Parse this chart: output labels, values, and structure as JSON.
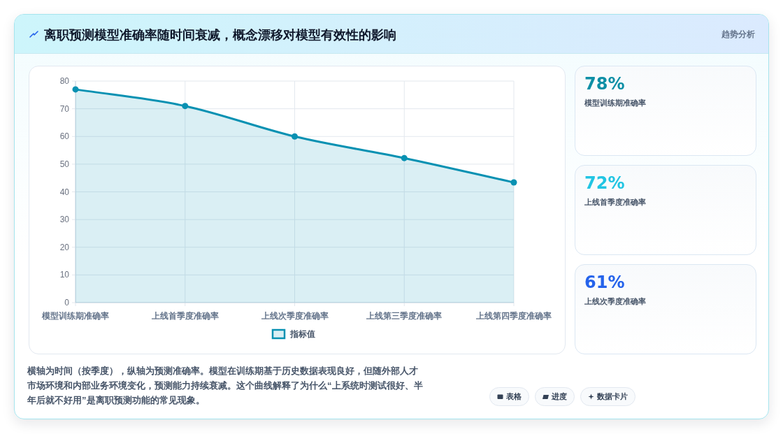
{
  "chart_data": [
    {
      "type": "area",
      "title": "离职预测模型准确率随时间衰减，概念漂移对模型有效性的影响",
      "categories": [
        "模型训练期准确率",
        "上线首季度准确率",
        "上线次季度准确率",
        "上线第三季度准确率",
        "上线第四季度准确率"
      ],
      "series": [
        {
          "name": "指标值",
          "color": "#0891b2",
          "values": [
            77,
            71,
            60,
            52.2,
            43.4
          ]
        }
      ],
      "ylim": [
        0,
        80
      ],
      "yticks": [
        0,
        10,
        20,
        30,
        40,
        50,
        60,
        70,
        80
      ],
      "grid": true,
      "legend": "bottom",
      "marker": "circle",
      "line_style": "solid",
      "annotations": [
        "横轴为时间（按季度），纵轴为预测准确率。模型在训练期基于历史数据表现良好，但随外部人才市场环境和内部业务环境变化，预测能力持续衰减。这个曲线解释了为什么“上系统时测试很好、半年后就不好用”是离职预测功能的常见现象。",
        "表格",
        "进度",
        "数据卡片"
      ]
    },
    {
      "type": "other",
      "title": "趋势分析",
      "categories": [
        "模型训练期准确率",
        "上线首季度准确率",
        "上线次季度准确率"
      ],
      "value_labels": [
        "78%",
        "72%",
        "61%"
      ]
    }
  ]
}
